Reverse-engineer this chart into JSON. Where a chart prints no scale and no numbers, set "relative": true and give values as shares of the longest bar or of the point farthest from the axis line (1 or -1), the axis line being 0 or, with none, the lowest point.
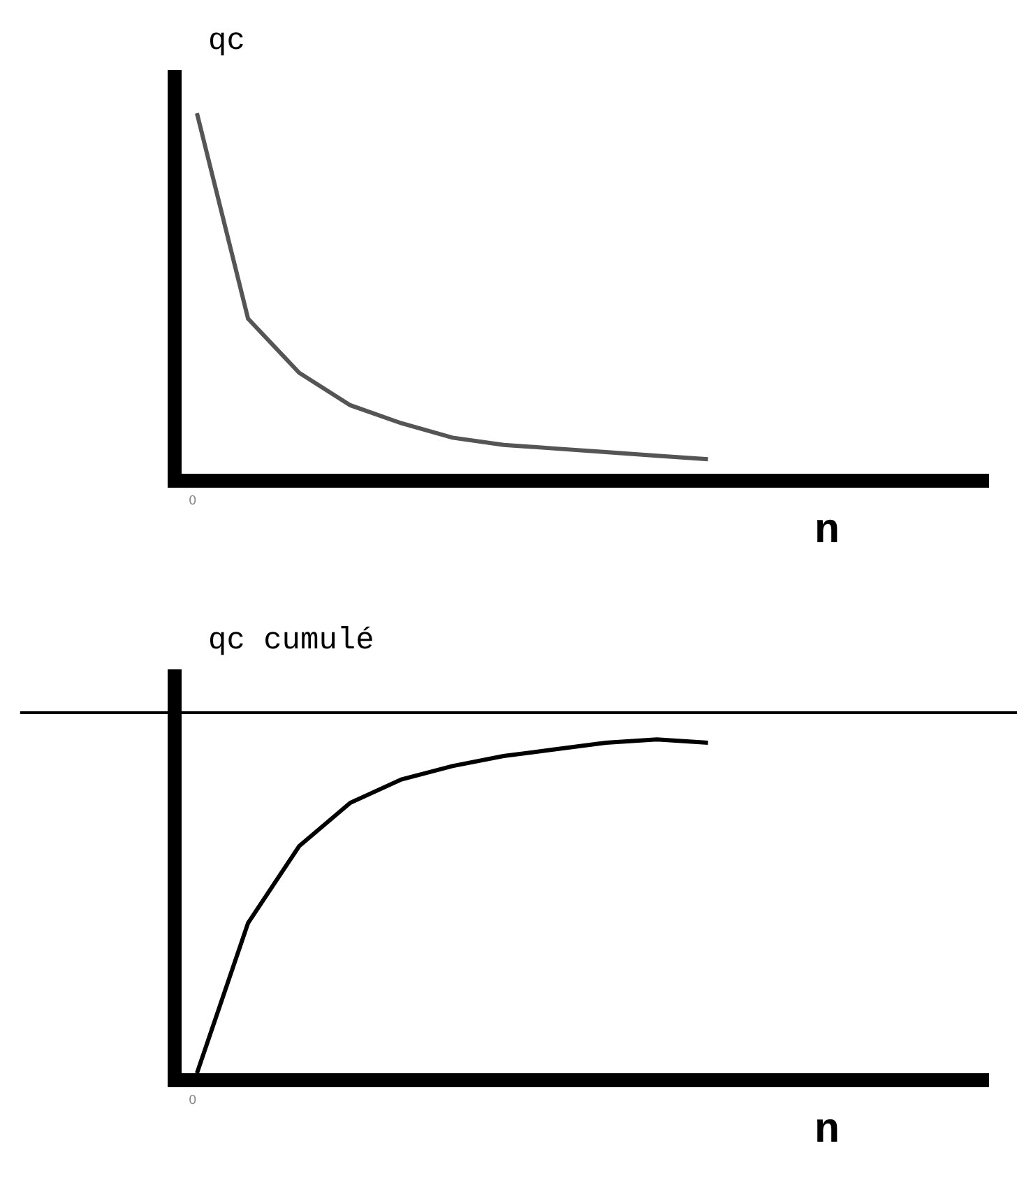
{
  "chart_data": [
    {
      "type": "line",
      "relative": true,
      "ylabel": "qc",
      "xlabel": "n",
      "categories": [
        null,
        null,
        null,
        null,
        null,
        null,
        null,
        null,
        null,
        null,
        null
      ],
      "series": [
        {
          "color": "#555555",
          "values": [
            1.0,
            0.43,
            0.28,
            0.19,
            0.14,
            0.1,
            0.08,
            0.07,
            0.06,
            0.05,
            0.04
          ]
        }
      ],
      "annotations": [
        "0"
      ]
    },
    {
      "type": "line",
      "relative": true,
      "ylabel": "qc cumulé",
      "xlabel": "n",
      "categories": [
        null,
        null,
        null,
        null,
        null,
        null,
        null,
        null,
        null,
        null,
        null
      ],
      "series": [
        {
          "color": "#000000",
          "values": [
            0,
            0.45,
            0.68,
            0.81,
            0.88,
            0.92,
            0.95,
            0.97,
            0.99,
            1.0,
            0.99
          ]
        }
      ],
      "ref_lines": [
        {
          "axis": "y",
          "value": 1.08,
          "color": "#000000"
        }
      ],
      "annotations": [
        "0"
      ]
    }
  ]
}
